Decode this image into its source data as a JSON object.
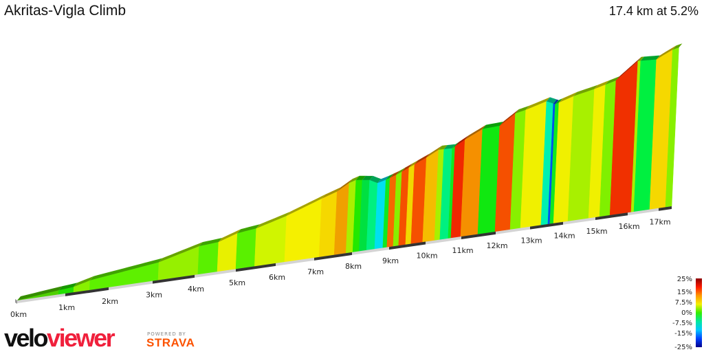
{
  "header": {
    "title": "Akritas-Vigla Climb",
    "summary": "17.4 km at 5.2%"
  },
  "branding": {
    "logo_velo": "velo",
    "logo_viewer": "viewer",
    "powered_by": "POWERED BY",
    "strava": "STRAVA"
  },
  "chart_data": {
    "type": "area",
    "title": "Akritas-Vigla Climb",
    "distance_km": 17.4,
    "average_gradient_pct": 5.2,
    "x_ticks": [
      "0km",
      "1km",
      "2km",
      "3km",
      "4km",
      "5km",
      "6km",
      "7km",
      "8km",
      "9km",
      "10km",
      "11km",
      "12km",
      "13km",
      "14km",
      "15km",
      "16km",
      "17km"
    ],
    "profile_km_elev_m": [
      [
        0,
        0
      ],
      [
        0.86,
        24
      ],
      [
        1.19,
        31
      ],
      [
        1.56,
        55
      ],
      [
        3.13,
        102
      ],
      [
        4.08,
        161
      ],
      [
        4.55,
        169
      ],
      [
        5.0,
        204
      ],
      [
        5.47,
        216
      ],
      [
        6.23,
        263
      ],
      [
        7.13,
        333
      ],
      [
        7.53,
        361
      ],
      [
        7.84,
        400
      ],
      [
        8.02,
        412
      ],
      [
        8.39,
        400
      ],
      [
        8.61,
        376
      ],
      [
        8.83,
        388
      ],
      [
        9.11,
        408
      ],
      [
        9.45,
        439
      ],
      [
        9.92,
        482
      ],
      [
        10.25,
        517
      ],
      [
        10.63,
        514
      ],
      [
        10.98,
        553
      ],
      [
        11.48,
        600
      ],
      [
        11.98,
        604
      ],
      [
        12.42,
        662
      ],
      [
        12.72,
        674
      ],
      [
        13.33,
        706
      ],
      [
        13.6,
        682
      ],
      [
        14.15,
        713
      ],
      [
        14.79,
        737
      ],
      [
        15.45,
        768
      ],
      [
        16.11,
        862
      ],
      [
        16.71,
        855
      ],
      [
        17.21,
        898
      ],
      [
        17.4,
        905
      ]
    ],
    "segments": [
      [
        0,
        0.86,
        "#4fd000"
      ],
      [
        0.86,
        1.19,
        "#22e000"
      ],
      [
        1.19,
        1.56,
        "#88f000"
      ],
      [
        1.56,
        3.13,
        "#5ef000"
      ],
      [
        3.13,
        4.08,
        "#96f000"
      ],
      [
        4.08,
        4.55,
        "#5af000"
      ],
      [
        4.55,
        5.0,
        "#e8f000"
      ],
      [
        5.0,
        5.47,
        "#5af000"
      ],
      [
        5.47,
        6.23,
        "#d0f500"
      ],
      [
        6.23,
        7.13,
        "#f5f000"
      ],
      [
        7.13,
        7.53,
        "#f5d800"
      ],
      [
        7.53,
        7.84,
        "#f0a000"
      ],
      [
        7.84,
        8.02,
        "#a8f000"
      ],
      [
        8.02,
        8.19,
        "#22e800"
      ],
      [
        8.19,
        8.39,
        "#00e040"
      ],
      [
        8.39,
        8.61,
        "#00f080"
      ],
      [
        8.61,
        8.83,
        "#00e0f0"
      ],
      [
        8.83,
        8.94,
        "#10e820"
      ],
      [
        8.94,
        9.11,
        "#f56a00"
      ],
      [
        9.11,
        9.26,
        "#88f000"
      ],
      [
        9.26,
        9.45,
        "#f55000"
      ],
      [
        9.45,
        9.6,
        "#f0d800"
      ],
      [
        9.6,
        9.92,
        "#f55000"
      ],
      [
        9.92,
        10.25,
        "#f5bc00"
      ],
      [
        10.25,
        10.4,
        "#a8f000"
      ],
      [
        10.4,
        10.63,
        "#00f080"
      ],
      [
        10.63,
        10.71,
        "#10e820"
      ],
      [
        10.71,
        10.98,
        "#f02800"
      ],
      [
        10.98,
        11.48,
        "#f59000"
      ],
      [
        11.48,
        11.98,
        "#10e810"
      ],
      [
        11.98,
        12.42,
        "#f55000"
      ],
      [
        12.42,
        12.72,
        "#88f000"
      ],
      [
        12.72,
        13.33,
        "#f0f000"
      ],
      [
        13.33,
        13.54,
        "#00f0b0"
      ],
      [
        13.54,
        13.6,
        "#0050f0"
      ],
      [
        13.6,
        13.71,
        "#10e820"
      ],
      [
        13.71,
        14.15,
        "#f0f000"
      ],
      [
        14.15,
        14.79,
        "#a8f000"
      ],
      [
        14.79,
        15.13,
        "#f0f000"
      ],
      [
        15.13,
        15.45,
        "#80f000"
      ],
      [
        15.45,
        16.11,
        "#f03000"
      ],
      [
        16.11,
        16.2,
        "#a8f000"
      ],
      [
        16.2,
        16.71,
        "#00f040"
      ],
      [
        16.71,
        17.21,
        "#f5d800"
      ],
      [
        17.21,
        17.4,
        "#88f000"
      ]
    ],
    "legend": {
      "labels": [
        "25%",
        "15%",
        "7.5%",
        "0%",
        "-7.5%",
        "-15%",
        "-25%"
      ],
      "colors": [
        "#8b0000",
        "#ff1a00",
        "#ff9900",
        "#f5f000",
        "#33ee00",
        "#00e8a0",
        "#00c8ff",
        "#0040ff",
        "#00008b"
      ]
    },
    "grid": false
  }
}
